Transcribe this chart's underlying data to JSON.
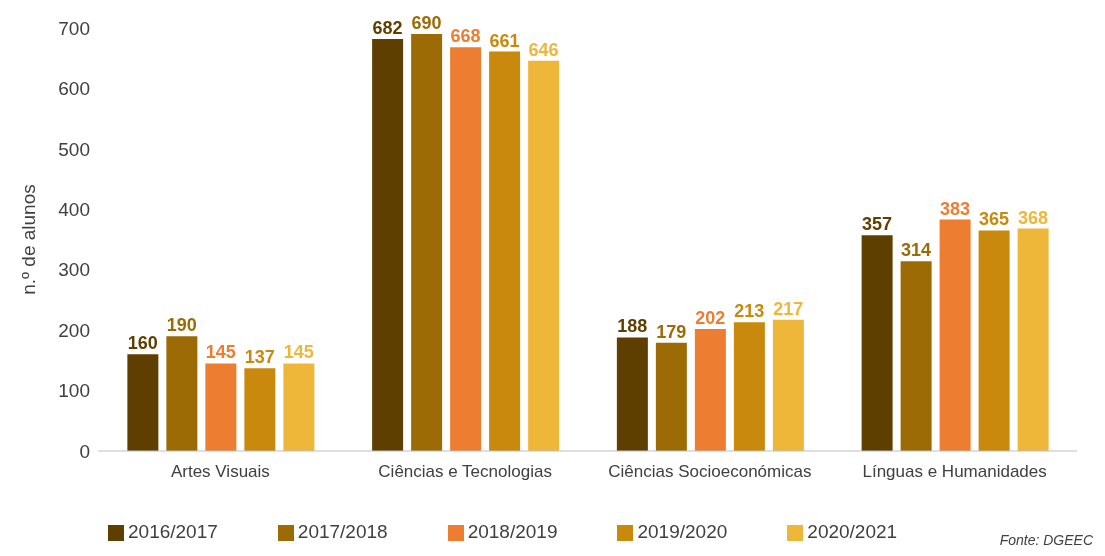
{
  "chart_data": {
    "type": "bar",
    "ylabel": "n.º de alunos",
    "categories": [
      "Artes Visuais",
      "Ciências e Tecnologias",
      "Ciências Socioeconómicas",
      "Línguas e Humanidades"
    ],
    "series": [
      {
        "name": "2016/2017",
        "color": "#5f3f00",
        "values": [
          160,
          682,
          188,
          357
        ]
      },
      {
        "name": "2017/2018",
        "color": "#9c6b06",
        "values": [
          190,
          690,
          179,
          314
        ]
      },
      {
        "name": "2018/2019",
        "color": "#ed7d31",
        "values": [
          145,
          668,
          202,
          383
        ]
      },
      {
        "name": "2019/2020",
        "color": "#c8890c",
        "values": [
          137,
          661,
          213,
          365
        ]
      },
      {
        "name": "2020/2021",
        "color": "#efb73a",
        "values": [
          145,
          646,
          217,
          368
        ]
      }
    ],
    "ylim": [
      0,
      700
    ],
    "yticks": [
      0,
      100,
      200,
      300,
      400,
      500,
      600,
      700
    ],
    "grid": false,
    "legend": "bottom",
    "data_labels": true,
    "annotations": [
      "Fonte: DGEEC"
    ]
  }
}
